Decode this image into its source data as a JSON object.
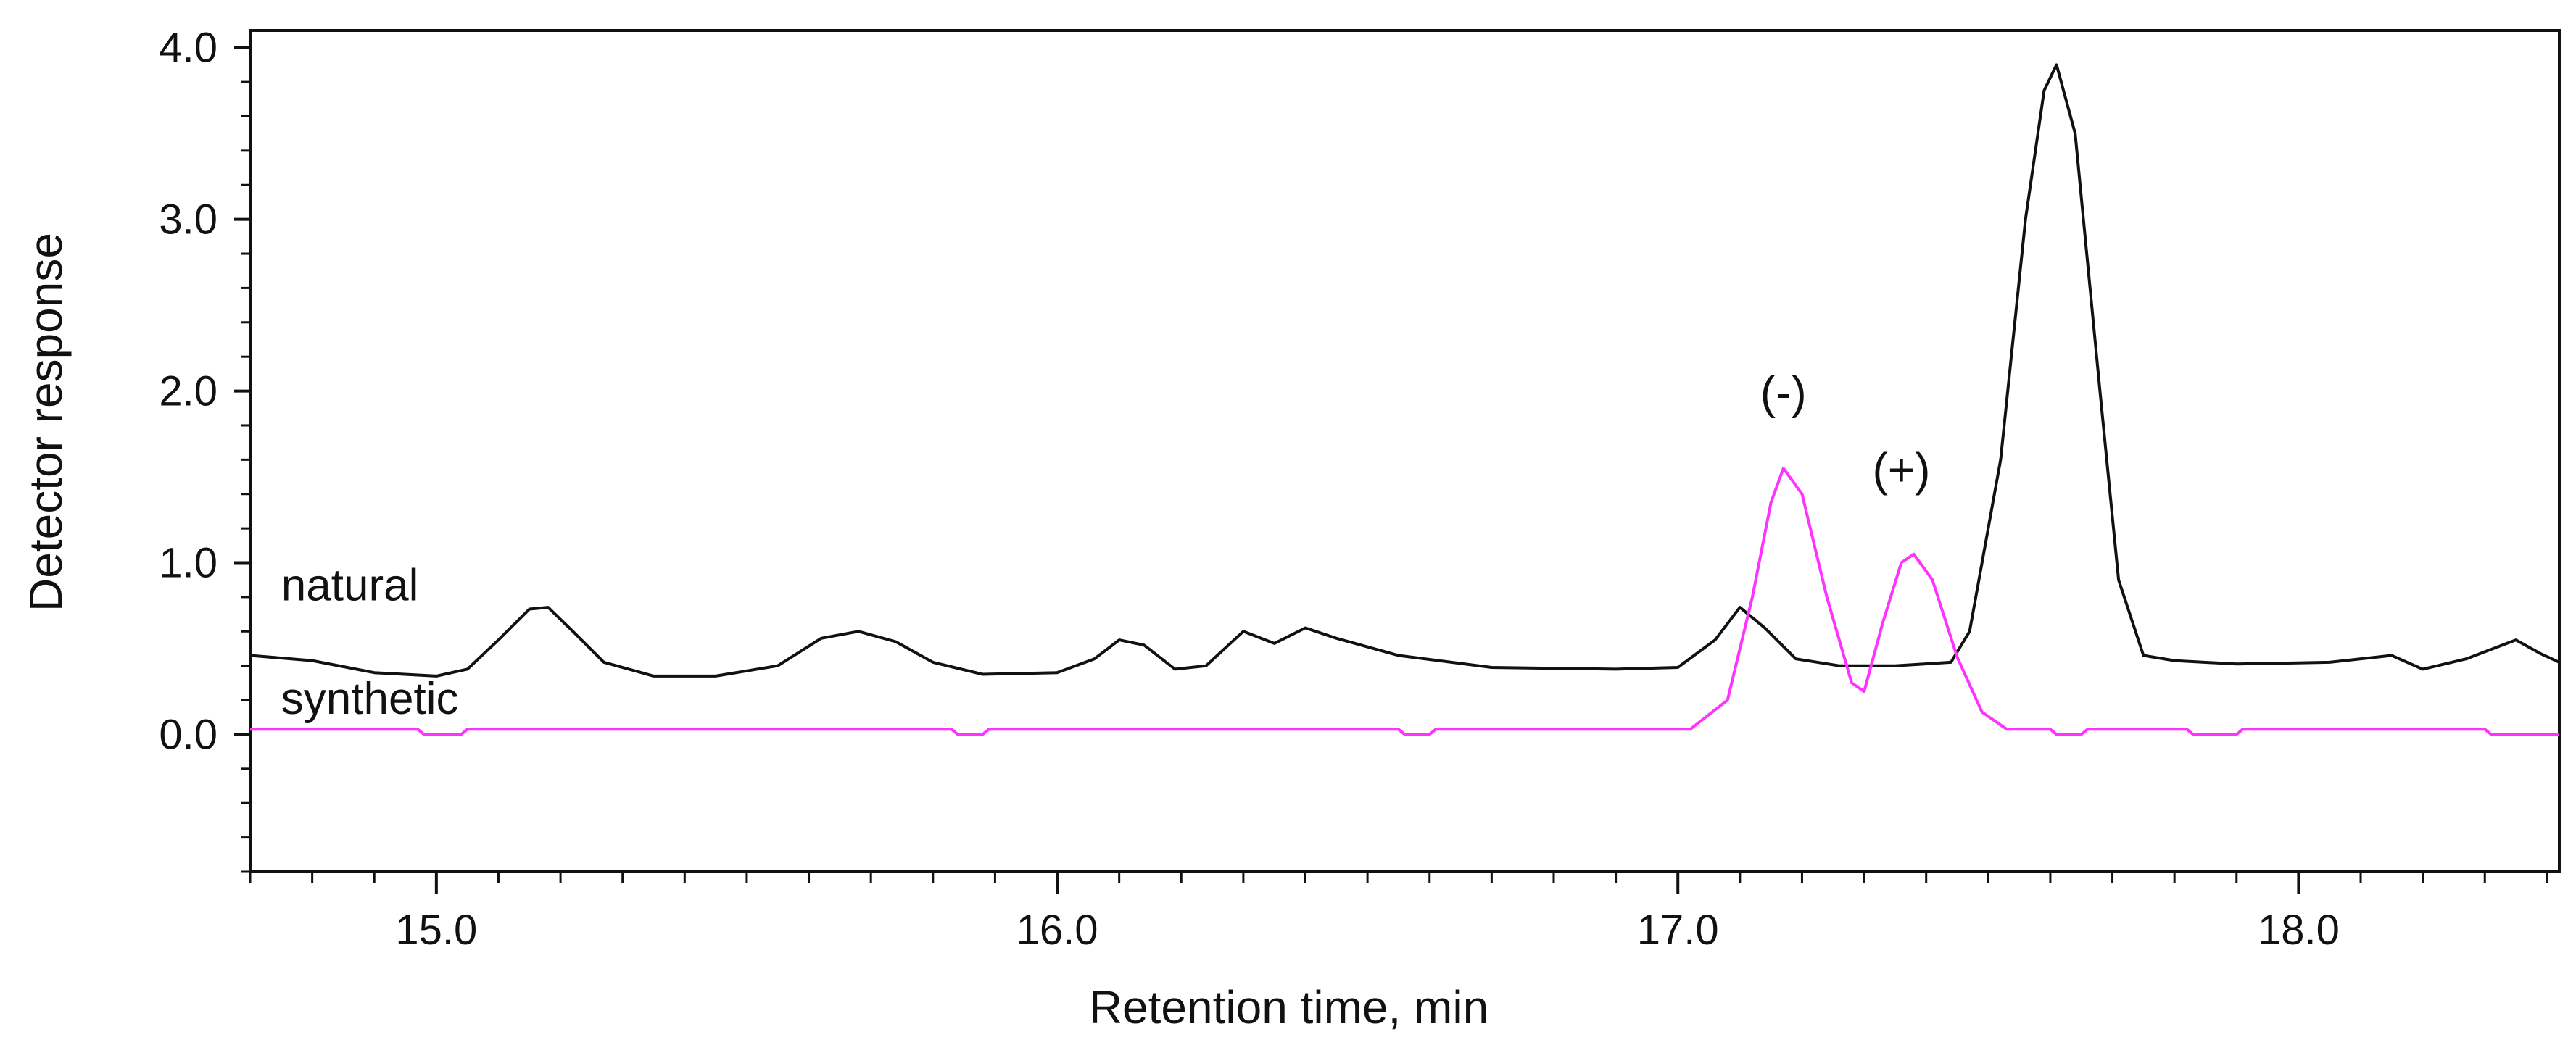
{
  "chart_data": {
    "type": "line",
    "title": "",
    "xlabel": "Retention time, min",
    "ylabel": "Detector response",
    "xlim": [
      14.7,
      18.42
    ],
    "ylim": [
      -0.8,
      4.1
    ],
    "x_ticks": [
      "15.0",
      "16.0",
      "17.0",
      "18.0"
    ],
    "y_ticks": [
      "0.0",
      "1.0",
      "2.0",
      "3.0",
      "4.0"
    ],
    "grid": false,
    "legend": "none",
    "series": [
      {
        "name": "natural",
        "color": "#111111",
        "points": [
          [
            14.7,
            0.46
          ],
          [
            14.8,
            0.43
          ],
          [
            14.9,
            0.36
          ],
          [
            15.0,
            0.34
          ],
          [
            15.05,
            0.38
          ],
          [
            15.1,
            0.55
          ],
          [
            15.15,
            0.73
          ],
          [
            15.18,
            0.74
          ],
          [
            15.22,
            0.6
          ],
          [
            15.27,
            0.42
          ],
          [
            15.35,
            0.34
          ],
          [
            15.45,
            0.34
          ],
          [
            15.55,
            0.4
          ],
          [
            15.62,
            0.56
          ],
          [
            15.68,
            0.6
          ],
          [
            15.74,
            0.54
          ],
          [
            15.8,
            0.42
          ],
          [
            15.88,
            0.35
          ],
          [
            16.0,
            0.36
          ],
          [
            16.06,
            0.44
          ],
          [
            16.1,
            0.55
          ],
          [
            16.14,
            0.52
          ],
          [
            16.19,
            0.38
          ],
          [
            16.24,
            0.4
          ],
          [
            16.3,
            0.6
          ],
          [
            16.35,
            0.53
          ],
          [
            16.4,
            0.62
          ],
          [
            16.45,
            0.56
          ],
          [
            16.55,
            0.46
          ],
          [
            16.7,
            0.39
          ],
          [
            16.9,
            0.38
          ],
          [
            17.0,
            0.39
          ],
          [
            17.06,
            0.55
          ],
          [
            17.1,
            0.74
          ],
          [
            17.14,
            0.62
          ],
          [
            17.19,
            0.44
          ],
          [
            17.26,
            0.4
          ],
          [
            17.35,
            0.4
          ],
          [
            17.44,
            0.42
          ],
          [
            17.47,
            0.6
          ],
          [
            17.52,
            1.6
          ],
          [
            17.56,
            3.0
          ],
          [
            17.59,
            3.75
          ],
          [
            17.61,
            3.9
          ],
          [
            17.64,
            3.5
          ],
          [
            17.68,
            2.0
          ],
          [
            17.71,
            0.9
          ],
          [
            17.75,
            0.46
          ],
          [
            17.8,
            0.43
          ],
          [
            17.9,
            0.41
          ],
          [
            18.05,
            0.42
          ],
          [
            18.15,
            0.46
          ],
          [
            18.2,
            0.38
          ],
          [
            18.27,
            0.44
          ],
          [
            18.35,
            0.55
          ],
          [
            18.39,
            0.47
          ],
          [
            18.42,
            0.42
          ]
        ]
      },
      {
        "name": "synthetic",
        "color": "#ff33ff",
        "points": [
          [
            14.7,
            0.03
          ],
          [
            14.97,
            0.03
          ],
          [
            14.98,
            0.0
          ],
          [
            15.04,
            0.0
          ],
          [
            15.05,
            0.03
          ],
          [
            15.83,
            0.03
          ],
          [
            15.84,
            0.0
          ],
          [
            15.88,
            0.0
          ],
          [
            15.89,
            0.03
          ],
          [
            16.55,
            0.03
          ],
          [
            16.56,
            0.0
          ],
          [
            16.6,
            0.0
          ],
          [
            16.61,
            0.03
          ],
          [
            17.02,
            0.03
          ],
          [
            17.08,
            0.2
          ],
          [
            17.12,
            0.8
          ],
          [
            17.15,
            1.35
          ],
          [
            17.17,
            1.55
          ],
          [
            17.2,
            1.4
          ],
          [
            17.24,
            0.8
          ],
          [
            17.28,
            0.3
          ],
          [
            17.3,
            0.25
          ],
          [
            17.33,
            0.65
          ],
          [
            17.36,
            1.0
          ],
          [
            17.38,
            1.05
          ],
          [
            17.41,
            0.9
          ],
          [
            17.45,
            0.45
          ],
          [
            17.49,
            0.13
          ],
          [
            17.53,
            0.03
          ],
          [
            17.6,
            0.03
          ],
          [
            17.61,
            0.0
          ],
          [
            17.65,
            0.0
          ],
          [
            17.66,
            0.03
          ],
          [
            17.82,
            0.03
          ],
          [
            17.83,
            0.0
          ],
          [
            17.9,
            0.0
          ],
          [
            17.91,
            0.03
          ],
          [
            18.3,
            0.03
          ],
          [
            18.31,
            0.0
          ],
          [
            18.42,
            0.0
          ]
        ]
      }
    ],
    "annotations": [
      {
        "text": "(-)",
        "x": 17.17,
        "y": 1.9
      },
      {
        "text": "(+)",
        "x": 17.36,
        "y": 1.45
      }
    ],
    "series_labels": [
      {
        "text": "natural",
        "x": 14.75,
        "y": 0.78
      },
      {
        "text": "synthetic",
        "x": 14.75,
        "y": 0.12
      }
    ]
  }
}
